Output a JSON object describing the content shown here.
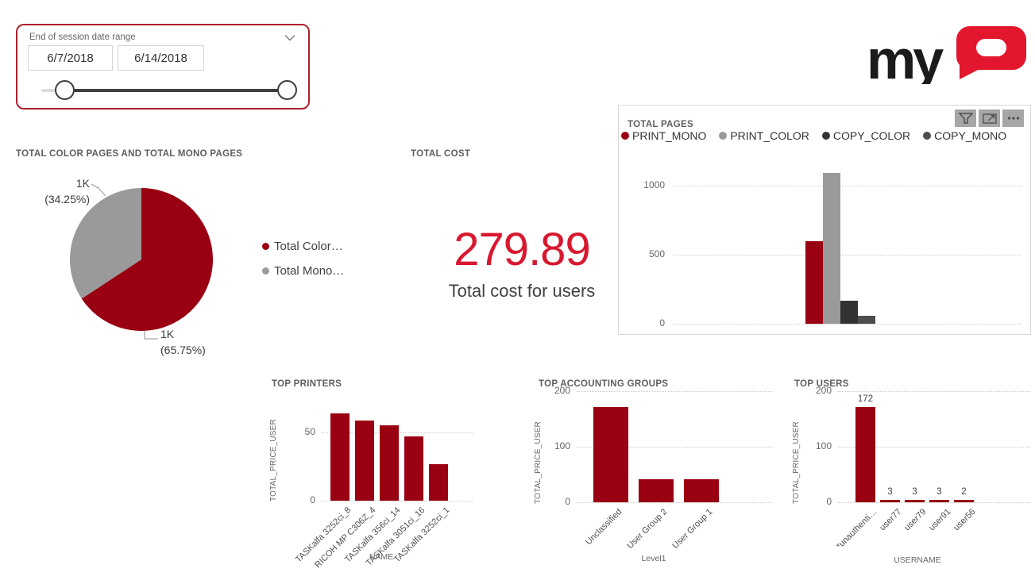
{
  "colors": {
    "dark_red": "#990011",
    "bright_red": "#d8182f",
    "logo_red": "#e2172d",
    "gray_series": "#9a9a9a",
    "black_series": "#333333",
    "dark_gray_series": "#4d4d4d",
    "slicer_border": "#ad1f2d"
  },
  "slicer": {
    "title": "End of session date range",
    "start_date": "6/7/2018",
    "end_date": "6/14/2018"
  },
  "logo": {
    "my": "my",
    "q": "Q"
  },
  "card": {
    "title": "TOTAL COST",
    "value": "279.89",
    "caption": "Total cost for users"
  },
  "total_pages_panel": {
    "title": "TOTAL PAGES",
    "toolbar": [
      "filter",
      "focus-mode",
      "more-options"
    ]
  },
  "chart_data": [
    {
      "id": "color-mono-pie",
      "type": "pie",
      "title": "TOTAL COLOR PAGES AND TOTAL MONO PAGES",
      "legend_position": "right",
      "slices": [
        {
          "legend_label": "Total Color…",
          "value_label": "1K",
          "pct_label": "(65.75%)",
          "pct": 65.75,
          "color": "#990011"
        },
        {
          "legend_label": "Total Mono…",
          "value_label": "1K",
          "pct_label": "(34.25%)",
          "pct": 34.25,
          "color": "#9a9a9a"
        }
      ]
    },
    {
      "id": "total-pages-bar",
      "type": "bar",
      "title": "TOTAL PAGES",
      "categories": [
        ""
      ],
      "series": [
        {
          "name": "PRINT_MONO",
          "values": [
            600
          ],
          "color": "#990011"
        },
        {
          "name": "PRINT_COLOR",
          "values": [
            1090
          ],
          "color": "#9a9a9a"
        },
        {
          "name": "COPY_COLOR",
          "values": [
            165
          ],
          "color": "#333333"
        },
        {
          "name": "COPY_MONO",
          "values": [
            55
          ],
          "color": "#4d4d4d"
        }
      ],
      "ylim": [
        0,
        1200
      ],
      "yticks": [
        0,
        500,
        1000
      ],
      "grid": "dotted",
      "legend_position": "top"
    },
    {
      "id": "top-printers",
      "type": "bar",
      "title": "TOP PRINTERS",
      "categories": [
        "TASKalfa 3252ci_8",
        "RICOH MP C306Z_4",
        "TASKalfa 356ci_14",
        "TASKalfa 3051ci_16",
        "TASKalfa 3252ci_1"
      ],
      "values": [
        64,
        59,
        55,
        47,
        27
      ],
      "bar_color": "#990011",
      "xlabel": "NAME",
      "ylabel": "TOTAL_PRICE_USER",
      "yticks": [
        0,
        50
      ],
      "ylim": [
        0,
        70
      ],
      "grid": "dotted"
    },
    {
      "id": "top-accounting-groups",
      "type": "bar",
      "title": "TOP ACCOUNTING GROUPS",
      "categories": [
        "Unclassified",
        "User Group 2",
        "User Group 1"
      ],
      "values": [
        171,
        42,
        41
      ],
      "bar_color": "#990011",
      "xlabel": "Level1",
      "ylabel": "TOTAL_PRICE_USER",
      "yticks": [
        0,
        100,
        200
      ],
      "ylim": [
        0,
        200
      ],
      "grid": "dotted"
    },
    {
      "id": "top-users",
      "type": "bar",
      "title": "TOP USERS",
      "categories": [
        "*unauthenti…",
        "user77",
        "user79",
        "user91",
        "user56"
      ],
      "values": [
        172,
        3,
        3,
        3,
        2
      ],
      "data_labels": [
        "172",
        "3",
        "3",
        "3",
        "2"
      ],
      "bar_color": "#990011",
      "xlabel": "USERNAME",
      "ylabel": "TOTAL_PRICE_USER",
      "yticks": [
        0,
        100,
        200
      ],
      "ylim": [
        0,
        200
      ],
      "grid": "dotted"
    }
  ]
}
